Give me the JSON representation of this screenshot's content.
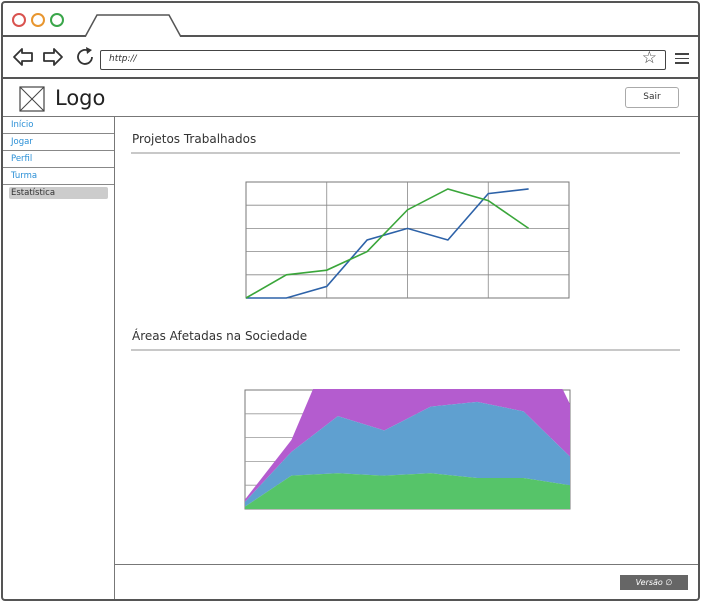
{
  "browser": {
    "url": "http://"
  },
  "header": {
    "logo_text": "Logo",
    "logout_label": "Sair"
  },
  "sidebar": {
    "items": [
      {
        "label": "Início"
      },
      {
        "label": "Jogar"
      },
      {
        "label": "Perfil"
      },
      {
        "label": "Turma"
      },
      {
        "label": "Estatística",
        "active": true
      }
    ]
  },
  "sections": {
    "projects_title": "Projetos Trabalhados",
    "areas_title": "Áreas Afetadas na Sociedade"
  },
  "footer": {
    "version_label": "Versão ∅"
  },
  "colors": {
    "link": "#2a8fd6",
    "series_green": "#3aa63a",
    "series_blue": "#2d62a8",
    "area_purple": "#b45ccf",
    "area_blue": "#5fa0d0",
    "area_green": "#56c469"
  },
  "chart_data": [
    {
      "type": "line",
      "x": [
        0,
        1,
        2,
        3,
        4,
        5,
        6,
        7,
        8
      ],
      "series": [
        {
          "values": [
            0,
            0,
            0.5,
            2.5,
            3,
            2.5,
            4.5,
            4.7,
            null
          ]
        },
        {
          "values": [
            0,
            1,
            1.2,
            2,
            3.8,
            4.7,
            4.2,
            3,
            null
          ]
        }
      ],
      "ylim": [
        0,
        5
      ],
      "grid": true
    },
    {
      "type": "area",
      "x": [
        0,
        1,
        2,
        3,
        4,
        5,
        6,
        7
      ],
      "series": [
        {
          "values": [
            0.5,
            2.5,
            18,
            15,
            21,
            23,
            21.5,
            11
          ]
        },
        {
          "values": [
            1,
            5,
            12,
            9.5,
            14,
            16,
            14,
            6
          ]
        },
        {
          "values": [
            0.5,
            7,
            7.5,
            7,
            7.5,
            6.5,
            6.5,
            5
          ]
        }
      ],
      "stacked": true,
      "grid": true
    }
  ]
}
